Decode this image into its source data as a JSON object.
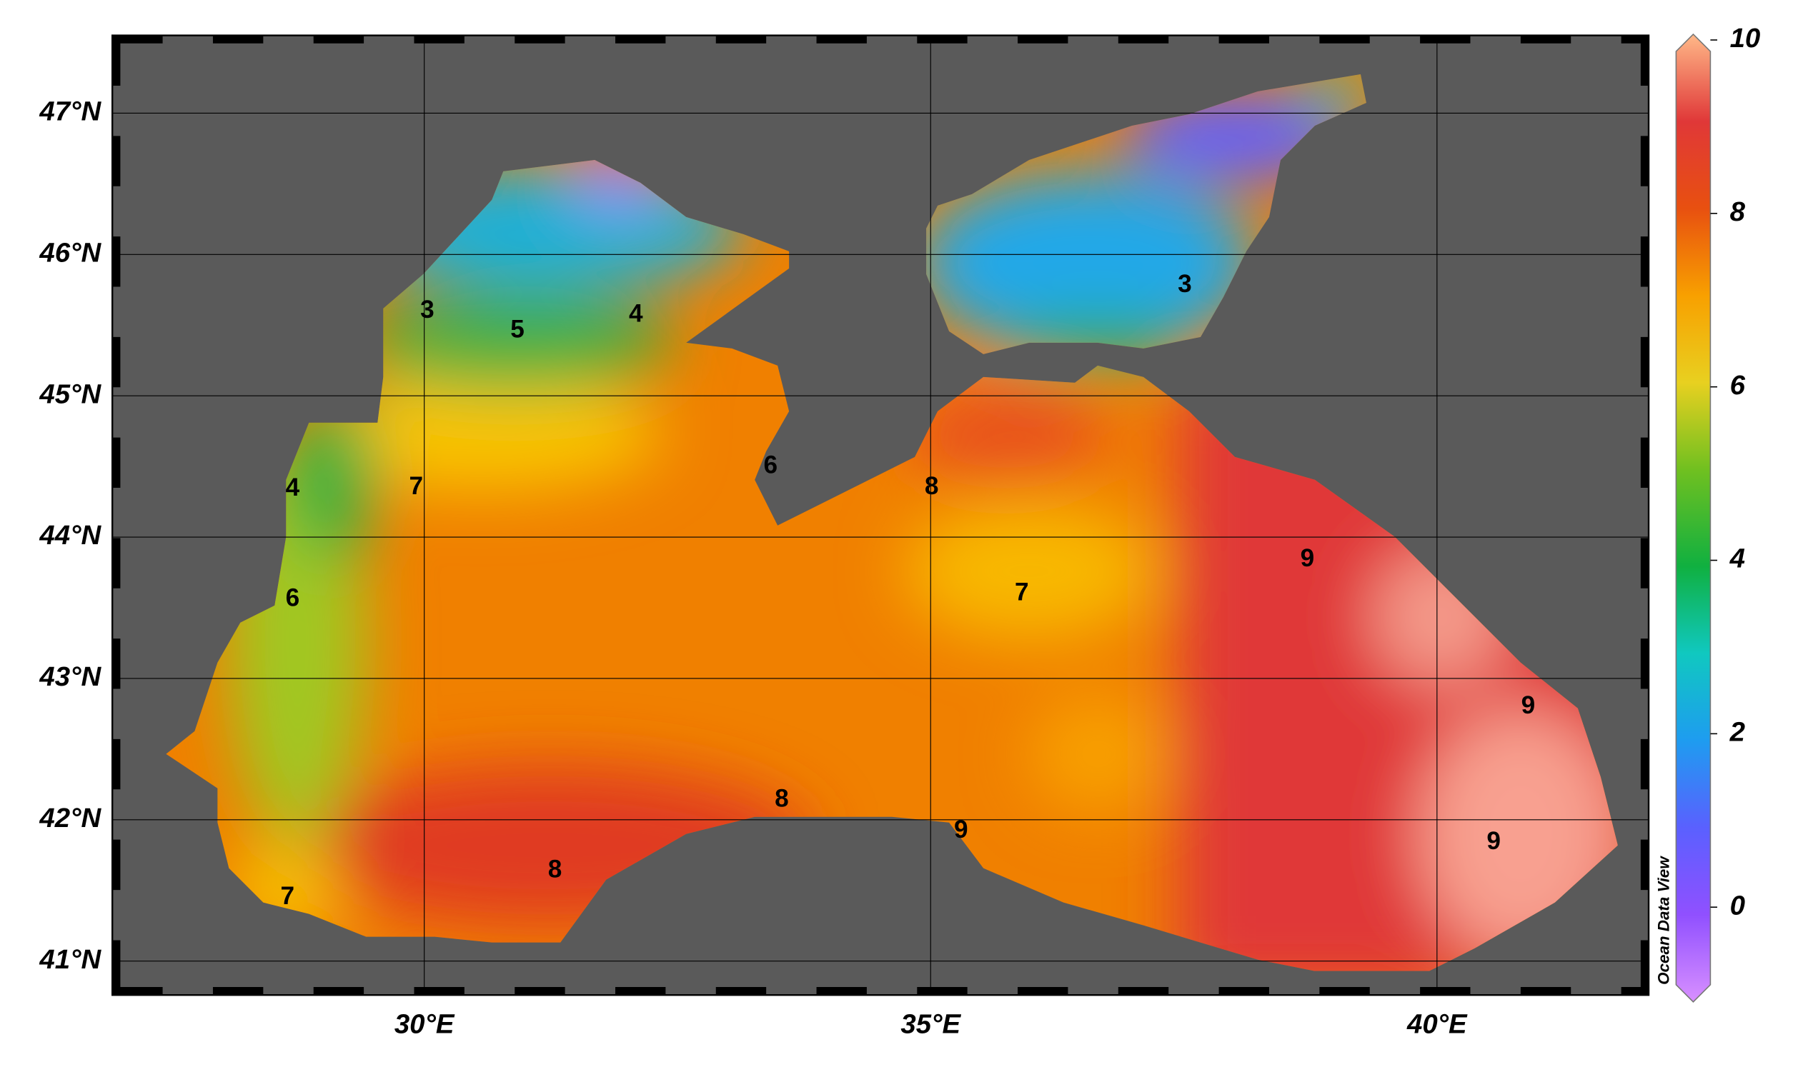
{
  "chart_data": {
    "type": "map",
    "xlim": [
      26.92,
      42.09
    ],
    "ylim": [
      40.76,
      47.55
    ],
    "xticks": [
      {
        "value": 30,
        "label": "30°E"
      },
      {
        "value": 35,
        "label": "35°E"
      },
      {
        "value": 40,
        "label": "40°E"
      }
    ],
    "yticks": [
      {
        "value": 41,
        "label": "41°N"
      },
      {
        "value": 42,
        "label": "42°N"
      },
      {
        "value": 43,
        "label": "43°N"
      },
      {
        "value": 44,
        "label": "44°N"
      },
      {
        "value": 45,
        "label": "45°N"
      },
      {
        "value": 46,
        "label": "46°N"
      },
      {
        "value": 47,
        "label": "47°N"
      }
    ],
    "grid": true,
    "colorbar": {
      "lim": [
        -1,
        10
      ],
      "ticks": [
        0,
        2,
        4,
        6,
        8,
        10
      ]
    },
    "contour_labels": [
      {
        "value": 3,
        "lon": 30.03,
        "lat": 45.6
      },
      {
        "value": 5,
        "lon": 30.92,
        "lat": 45.46
      },
      {
        "value": 4,
        "lon": 32.09,
        "lat": 45.57
      },
      {
        "value": 3,
        "lon": 37.51,
        "lat": 45.78
      },
      {
        "value": 4,
        "lon": 28.7,
        "lat": 44.34
      },
      {
        "value": 7,
        "lon": 29.92,
        "lat": 44.35
      },
      {
        "value": 6,
        "lon": 33.42,
        "lat": 44.5
      },
      {
        "value": 8,
        "lon": 35.01,
        "lat": 44.35
      },
      {
        "value": 9,
        "lon": 38.72,
        "lat": 43.84
      },
      {
        "value": 6,
        "lon": 28.7,
        "lat": 43.56
      },
      {
        "value": 7,
        "lon": 35.9,
        "lat": 43.6
      },
      {
        "value": 9,
        "lon": 40.9,
        "lat": 42.8
      },
      {
        "value": 8,
        "lon": 33.53,
        "lat": 42.14
      },
      {
        "value": 9,
        "lon": 35.3,
        "lat": 41.92
      },
      {
        "value": 9,
        "lon": 40.56,
        "lat": 41.84
      },
      {
        "value": 8,
        "lon": 31.29,
        "lat": 41.64
      },
      {
        "value": 7,
        "lon": 28.65,
        "lat": 41.45
      }
    ],
    "watermark": "Ocean Data View"
  }
}
